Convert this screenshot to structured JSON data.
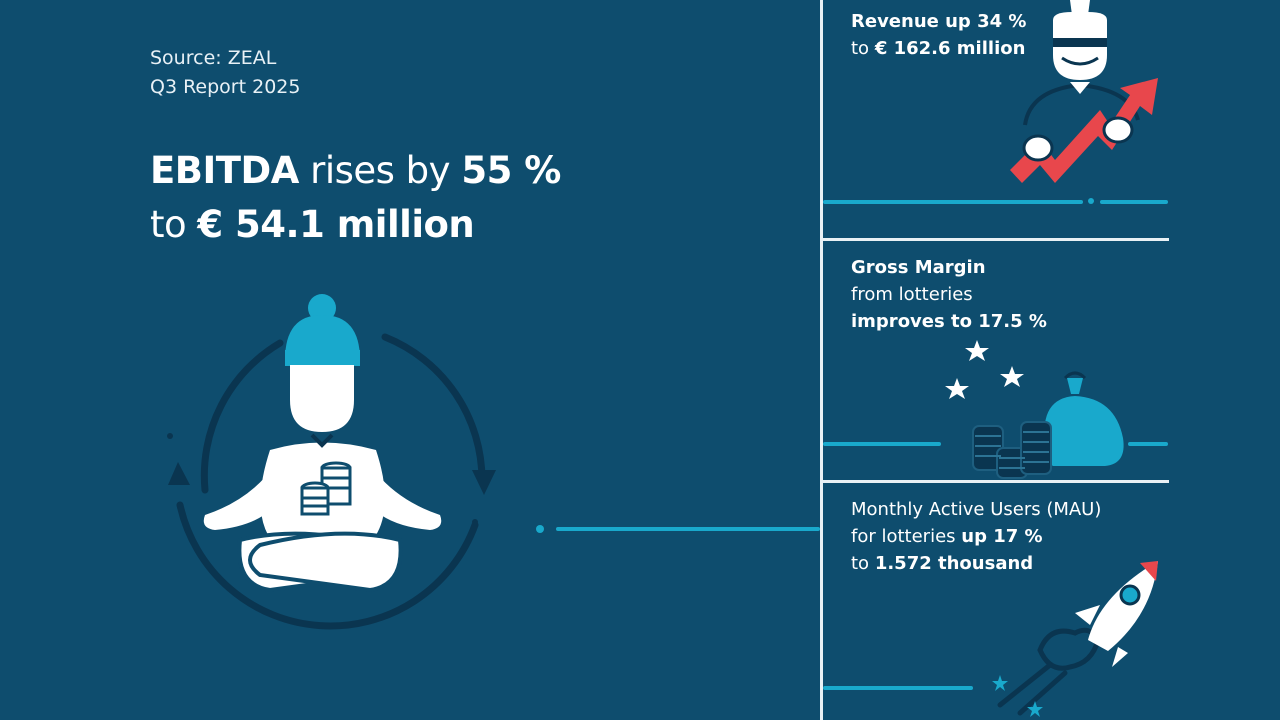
{
  "source": {
    "line1": "Source: ZEAL",
    "line2": "Q3 Report 2025"
  },
  "headline": {
    "part1_bold": "EBITDA",
    "part1_light": "rises by",
    "part1_value": "55 %",
    "part2_light": "to",
    "part2_value": "€ 54.1 million"
  },
  "panels": [
    {
      "line1_bold": "Revenue up 34 %",
      "line2_light": "to",
      "line2_bold": "€ 162.6 million"
    },
    {
      "line1_bold": "Gross Margin",
      "line2_light": "from lotteries",
      "line3_bold": "improves to 17.5 %"
    },
    {
      "line1_light": "Monthly Active Users (MAU)",
      "line2_light": "for lotteries",
      "line2_bold": "up 17 %",
      "line3_light": "to",
      "line3_bold": "1.572 thousand"
    }
  ],
  "icons": {
    "main": "meditating-person-with-coins-icon",
    "revenue": "person-with-rising-arrow-icon",
    "margin": "money-bag-with-coins-and-stars-icon",
    "users": "rocket-icon"
  },
  "colors": {
    "background": "#0e4d6e",
    "accent": "#19a9cc",
    "arrow": "#e8474c",
    "text": "#ffffff"
  }
}
